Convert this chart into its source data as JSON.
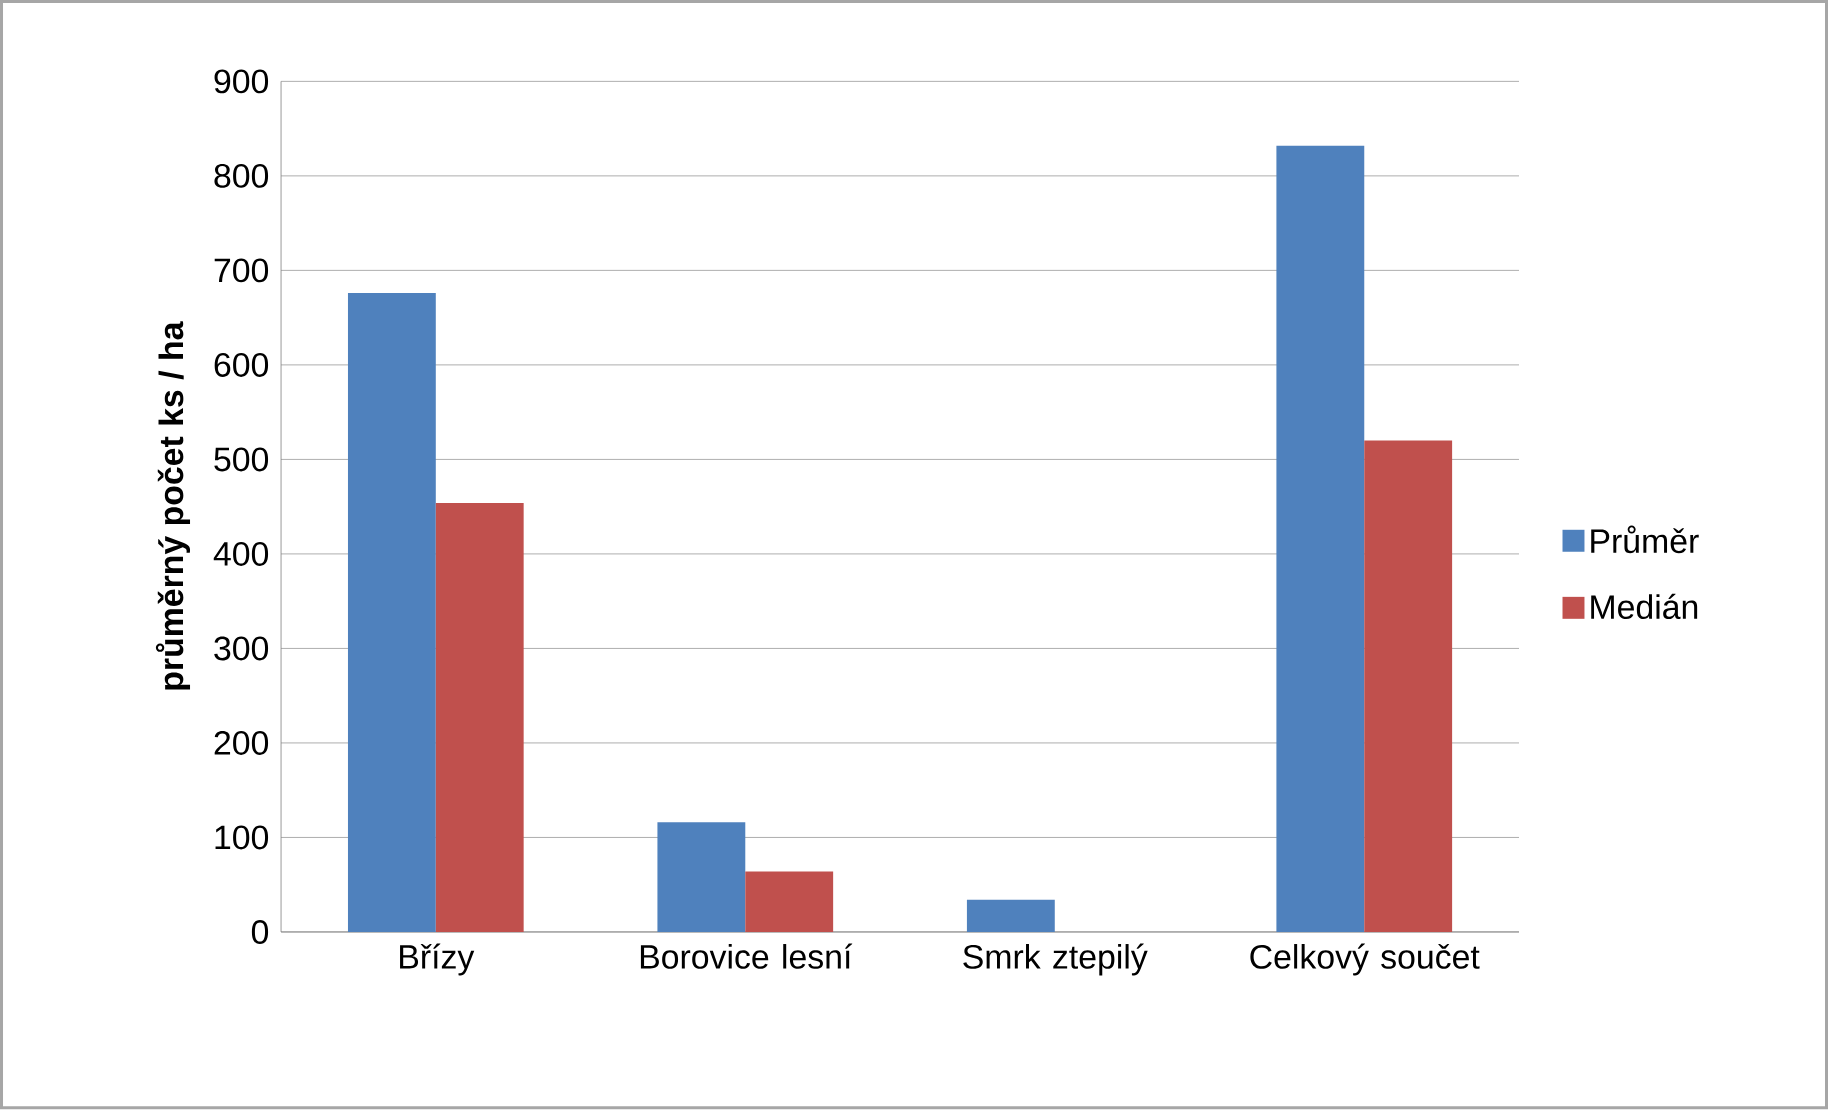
{
  "chart_data": {
    "type": "bar",
    "ylabel": "průměrný počet ks / ha",
    "categories": [
      "Břízy",
      "Borovice lesní",
      "Smrk ztepilý",
      "Celkový součet"
    ],
    "series": [
      {
        "name": "Průměr",
        "color": "#4f81bd",
        "values": [
          676,
          116,
          34,
          832
        ]
      },
      {
        "name": "Medián",
        "color": "#c0504d",
        "values": [
          454,
          64,
          0,
          520
        ]
      }
    ],
    "ylim": [
      0,
      900
    ],
    "yticks": [
      0,
      100,
      200,
      300,
      400,
      500,
      600,
      700,
      800,
      900
    ],
    "grid": "y",
    "legend": "right"
  }
}
